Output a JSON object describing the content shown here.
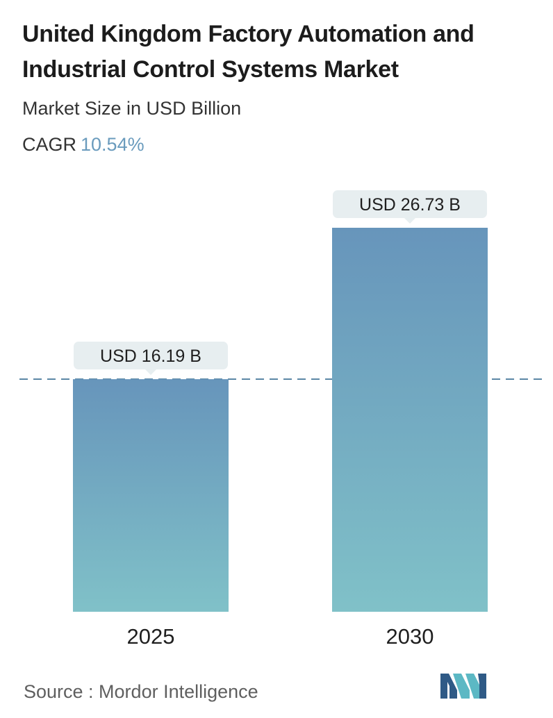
{
  "title": "United Kingdom Factory Automation and Industrial Control Systems Market",
  "subtitle": "Market Size in USD Billion",
  "cagr_label": "CAGR",
  "cagr_value": "10.54%",
  "source": "Source :  Mordor Intelligence",
  "colors": {
    "bar_top": "#6795bb",
    "bar_bottom": "#80c1c8",
    "callout_bg": "#e7eef0",
    "dashed_line": "#5b87a5",
    "cagr_accent": "#6a9bbd",
    "logo_dark": "#2f5a86",
    "logo_light": "#5cb8c4"
  },
  "chart_data": {
    "type": "bar",
    "categories": [
      "2025",
      "2030"
    ],
    "values": [
      16.19,
      26.73
    ],
    "value_labels": [
      "USD 16.19 B",
      "USD 26.73 B"
    ],
    "title": "United Kingdom Factory Automation and Industrial Control Systems Market",
    "subtitle": "Market Size in USD Billion",
    "xlabel": "",
    "ylabel": "",
    "ylim": [
      0,
      26.73
    ],
    "grid": false,
    "reference_line": 16.19,
    "legend": "none"
  }
}
